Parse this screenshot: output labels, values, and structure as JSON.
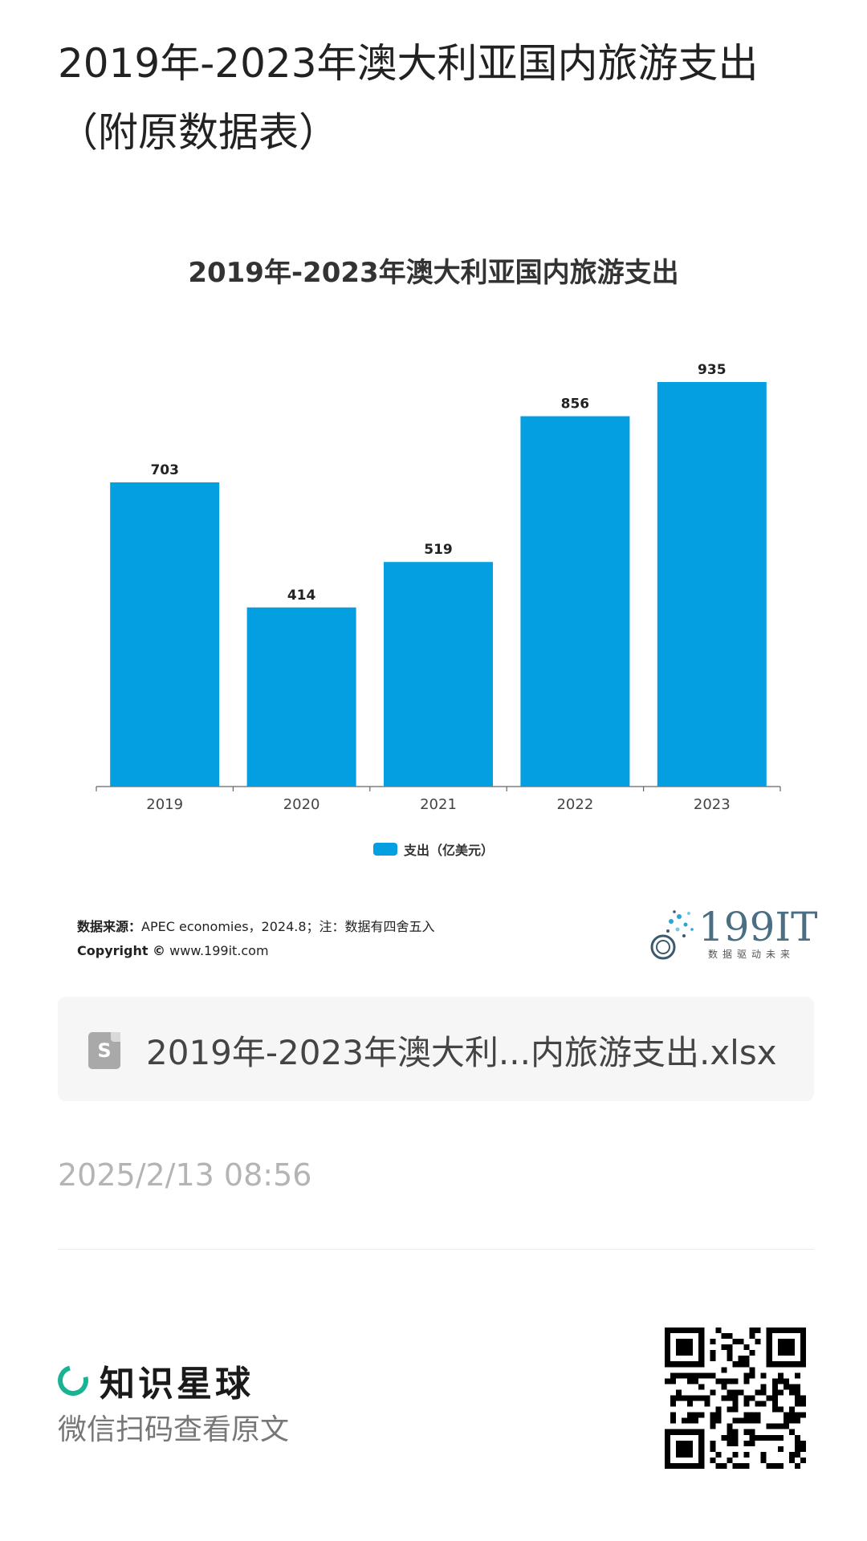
{
  "page": {
    "title": "2019年-2023年澳大利亚国内旅游支出（附原数据表）"
  },
  "chart": {
    "title": "2019年-2023年澳大利亚国内旅游支出",
    "legend_label": "支出（亿美元）",
    "bar_color": "#049fe0"
  },
  "chart_data": {
    "type": "bar",
    "title": "2019年-2023年澳大利亚国内旅游支出",
    "categories": [
      "2019",
      "2020",
      "2021",
      "2022",
      "2023"
    ],
    "series": [
      {
        "name": "支出（亿美元）",
        "values": [
          703,
          414,
          519,
          856,
          935
        ]
      }
    ],
    "ylim": [
      0,
      1000
    ],
    "grid": false,
    "legend": "bottom"
  },
  "source": {
    "label": "数据来源：",
    "text": "APEC economies，2024.8；注：数据有四舍五入",
    "copyright_label": "Copyright ©",
    "copyright_text": "www.199it.com"
  },
  "brand": {
    "name": "199IT",
    "tagline": "数据驱动未来",
    "color": "#4a6f84"
  },
  "file": {
    "icon_letter": "S",
    "name": "2019年-2023年澳大利...内旅游支出.xlsx"
  },
  "timestamp": "2025/2/13 08:56",
  "footer": {
    "app_name": "知识星球",
    "scan_hint": "微信扫码查看原文",
    "accent_color": "#19b394"
  }
}
